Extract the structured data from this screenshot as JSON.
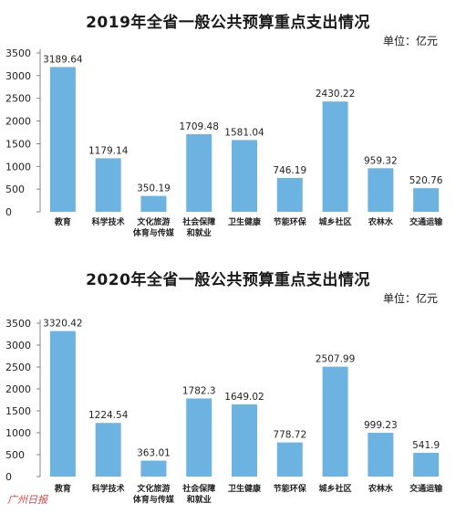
{
  "watermark": "广州日报",
  "chart_data": [
    {
      "type": "bar",
      "title": "2019年全省一般公共预算重点支出情况",
      "unit": "单位：亿元",
      "categories": [
        "教育",
        "科学技术",
        "文化旅游体育与传媒",
        "社会保障和就业",
        "卫生健康",
        "节能环保",
        "城乡社区",
        "农林水",
        "交通运输"
      ],
      "category_lines": [
        [
          "教育"
        ],
        [
          "科学技术"
        ],
        [
          "文化旅游",
          "体育与传媒"
        ],
        [
          "社会保障",
          "和就业"
        ],
        [
          "卫生健康"
        ],
        [
          "节能环保"
        ],
        [
          "城乡社区"
        ],
        [
          "农林水"
        ],
        [
          "交通运输"
        ]
      ],
      "values": [
        3189.64,
        1179.14,
        350.19,
        1709.48,
        1581.04,
        746.19,
        2430.22,
        959.32,
        520.76
      ],
      "value_labels": [
        "3189.64",
        "1179.14",
        "350.19",
        "1709.48",
        "1581.04",
        "746.19",
        "2430.22",
        "959.32",
        "520.76"
      ],
      "ylim": [
        0,
        3500
      ],
      "yticks": [
        0,
        500,
        1000,
        1500,
        2000,
        2500,
        3000,
        3500
      ],
      "bar_color": "#6db3e2",
      "grid": false
    },
    {
      "type": "bar",
      "title": "2020年全省一般公共预算重点支出情况",
      "unit": "单位：亿元",
      "categories": [
        "教育",
        "科学技术",
        "文化旅游体育与传媒",
        "社会保障和就业",
        "卫生健康",
        "节能环保",
        "城乡社区",
        "农林水",
        "交通运输"
      ],
      "category_lines": [
        [
          "教育"
        ],
        [
          "科学技术"
        ],
        [
          "文化旅游",
          "体育与传媒"
        ],
        [
          "社会保障",
          "和就业"
        ],
        [
          "卫生健康"
        ],
        [
          "节能环保"
        ],
        [
          "城乡社区"
        ],
        [
          "农林水"
        ],
        [
          "交通运输"
        ]
      ],
      "values": [
        3320.42,
        1224.54,
        363.01,
        1782.3,
        1649.02,
        778.72,
        2507.99,
        999.23,
        541.9
      ],
      "value_labels": [
        "3320.42",
        "1224.54",
        "363.01",
        "1782.3",
        "1649.02",
        "778.72",
        "2507.99",
        "999.23",
        "541.9"
      ],
      "ylim": [
        0,
        3500
      ],
      "yticks": [
        0,
        500,
        1000,
        1500,
        2000,
        2500,
        3000,
        3500
      ],
      "bar_color": "#6db3e2",
      "grid": false
    }
  ]
}
